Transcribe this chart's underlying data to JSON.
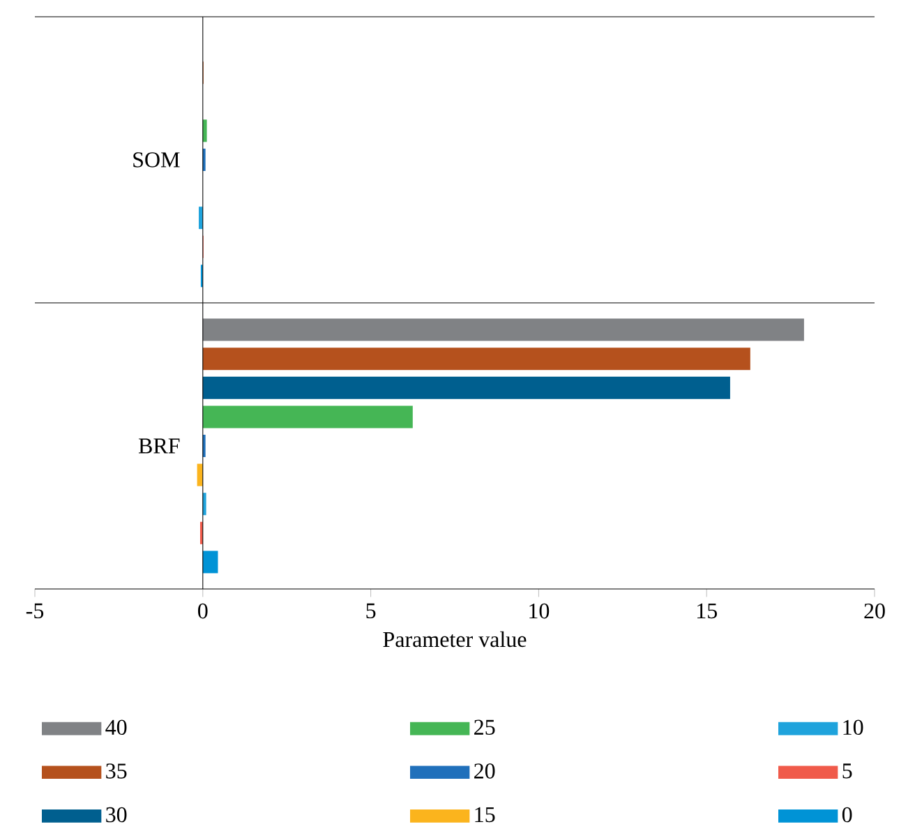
{
  "chart_data": {
    "type": "bar",
    "orientation": "horizontal",
    "xlabel": "Parameter value",
    "categories": [
      "SOM",
      "BRF"
    ],
    "xlim": [
      -5,
      20
    ],
    "xticks": [
      -5,
      0,
      5,
      10,
      15,
      20
    ],
    "legend": "bottom",
    "series": [
      {
        "name": "40",
        "color": "#808285",
        "values": [
          0,
          17.9
        ]
      },
      {
        "name": "35",
        "color": "#b5511d",
        "values": [
          0.02,
          16.3
        ]
      },
      {
        "name": "30",
        "color": "#005f8f",
        "values": [
          0,
          15.7
        ]
      },
      {
        "name": "25",
        "color": "#45b655",
        "values": [
          0.12,
          6.25
        ]
      },
      {
        "name": "20",
        "color": "#2070bb",
        "values": [
          0.08,
          0.08
        ]
      },
      {
        "name": "15",
        "color": "#fbb41d",
        "values": [
          0,
          -0.17
        ]
      },
      {
        "name": "10",
        "color": "#1fa3dc",
        "values": [
          -0.12,
          0.1
        ]
      },
      {
        "name": "5",
        "color": "#f05a4a",
        "values": [
          0.02,
          -0.08
        ]
      },
      {
        "name": "0",
        "color": "#0093d6",
        "values": [
          -0.06,
          0.45
        ]
      }
    ]
  }
}
